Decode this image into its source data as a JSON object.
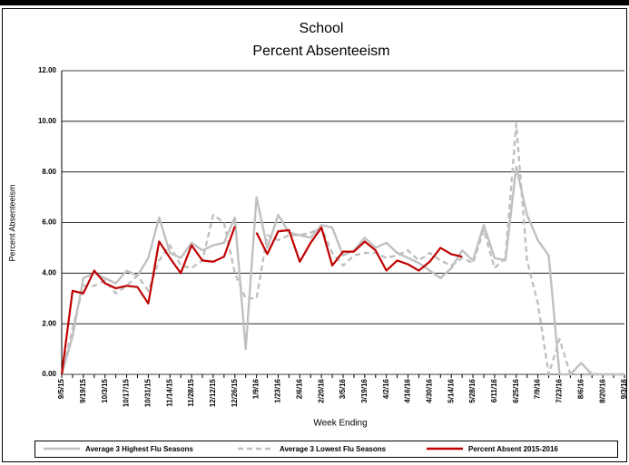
{
  "chart_data": {
    "type": "line",
    "title": "School",
    "subtitle": "Percent Absenteeism",
    "y_label": "Percent Absenteeism",
    "x_label": "Week Ending",
    "categories": [
      "9/5/15",
      null,
      "9/19/15",
      null,
      "10/3/15",
      null,
      "10/17/15",
      null,
      "10/31/15",
      null,
      "11/14/15",
      null,
      "11/28/15",
      null,
      "12/12/15",
      null,
      "12/26/15",
      null,
      "1/9/16",
      null,
      "1/23/16",
      null,
      "2/6/16",
      null,
      "2/20/16",
      null,
      "3/5/16",
      null,
      "3/19/16",
      null,
      "4/2/16",
      null,
      "4/16/16",
      null,
      "4/30/16",
      null,
      "5/14/16",
      null,
      "5/28/16",
      null,
      "6/11/16",
      null,
      "6/25/16",
      null,
      "7/9/16",
      null,
      "7/23/16",
      null,
      "8/6/16",
      null,
      "8/20/16",
      null,
      "9/3/16"
    ],
    "series": [
      {
        "name": "Average 3 Highest Flu Seasons",
        "color": "#c0c0c0",
        "style": "solid",
        "values": [
          0,
          1.5,
          3.8,
          4.0,
          3.8,
          3.6,
          4.1,
          3.9,
          4.6,
          6.2,
          4.8,
          4.6,
          5.2,
          4.9,
          5.1,
          5.2,
          6.2,
          1.0,
          7.0,
          5.0,
          6.3,
          5.6,
          5.5,
          5.4,
          5.9,
          5.8,
          4.7,
          4.9,
          5.4,
          5.0,
          5.2,
          4.8,
          4.6,
          4.4,
          4.1,
          3.8,
          4.2,
          4.9,
          4.5,
          5.9,
          4.6,
          4.5,
          8.2,
          6.3,
          5.3,
          4.7,
          0,
          0,
          0.45,
          0,
          0,
          0,
          0
        ]
      },
      {
        "name": "Average 3 Lowest Flu Seasons",
        "color": "#c0c0c0",
        "style": "dashed",
        "values": [
          0,
          1.8,
          3.5,
          3.5,
          3.7,
          3.2,
          3.5,
          3.9,
          3.3,
          4.5,
          5.1,
          4.3,
          4.2,
          4.5,
          6.3,
          6.0,
          4.0,
          3.0,
          3.0,
          5.5,
          5.3,
          5.5,
          5.5,
          5.6,
          5.8,
          4.8,
          4.3,
          4.7,
          4.8,
          4.8,
          4.6,
          4.7,
          4.9,
          4.5,
          4.8,
          4.5,
          4.3,
          4.6,
          4.4,
          5.7,
          4.2,
          4.6,
          9.9,
          4.5,
          2.8,
          0,
          1.4,
          0,
          0,
          0,
          0,
          0,
          0
        ]
      },
      {
        "name": "Percent Absent 2015-2016",
        "color": "#c00000",
        "style": "solid",
        "values": [
          0,
          3.3,
          3.2,
          4.1,
          3.6,
          3.4,
          3.5,
          3.45,
          2.8,
          5.25,
          4.6,
          4.0,
          5.1,
          4.5,
          4.45,
          4.65,
          5.85,
          null,
          5.6,
          4.75,
          5.65,
          5.7,
          4.45,
          5.2,
          5.8,
          4.3,
          4.85,
          4.85,
          5.25,
          4.9,
          4.1,
          4.5,
          4.35,
          4.1,
          4.45,
          5.0,
          4.75,
          4.65,
          null,
          null,
          null,
          null,
          null,
          null,
          null,
          null,
          null,
          null,
          null,
          null,
          null,
          null,
          null
        ]
      }
    ],
    "ylim": [
      0,
      12
    ],
    "yticks": [
      {
        "value": 0,
        "label": "0.00"
      },
      {
        "value": 2,
        "label": "2.00"
      },
      {
        "value": 4,
        "label": "4.00"
      },
      {
        "value": 6,
        "label": "6.00"
      },
      {
        "value": 8,
        "label": "8.00"
      },
      {
        "value": 10,
        "label": "10.00"
      },
      {
        "value": 12,
        "label": "12.00"
      }
    ],
    "grid": true,
    "legend": "bottom"
  }
}
